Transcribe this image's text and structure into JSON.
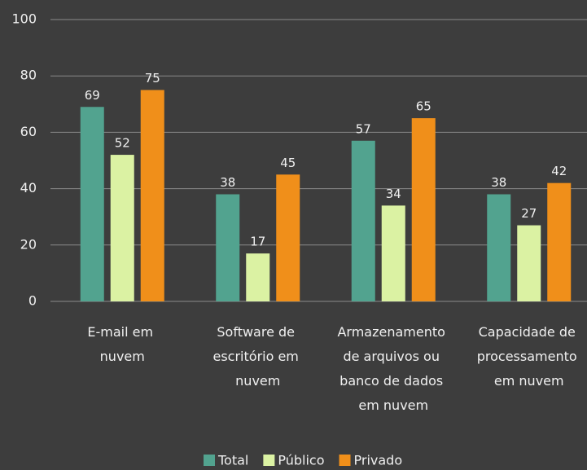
{
  "chart_data": {
    "type": "bar",
    "categories": [
      "E-mail em nuvem",
      "Software de escritório em nuvem",
      "Armazenamento de arquivos ou banco de dados em nuvem",
      "Capacidade de processamento em nuvem"
    ],
    "series": [
      {
        "name": "Total",
        "color": "#52a38f",
        "values": [
          69,
          38,
          57,
          38
        ]
      },
      {
        "name": "Público",
        "color": "#dbf2a3",
        "values": [
          52,
          17,
          34,
          27
        ]
      },
      {
        "name": "Privado",
        "color": "#f08f1a",
        "values": [
          75,
          45,
          65,
          42
        ]
      }
    ],
    "ylim": [
      0,
      100
    ],
    "yticks": [
      0,
      20,
      40,
      60,
      80,
      100
    ],
    "grid": true,
    "legend": "bottom"
  }
}
